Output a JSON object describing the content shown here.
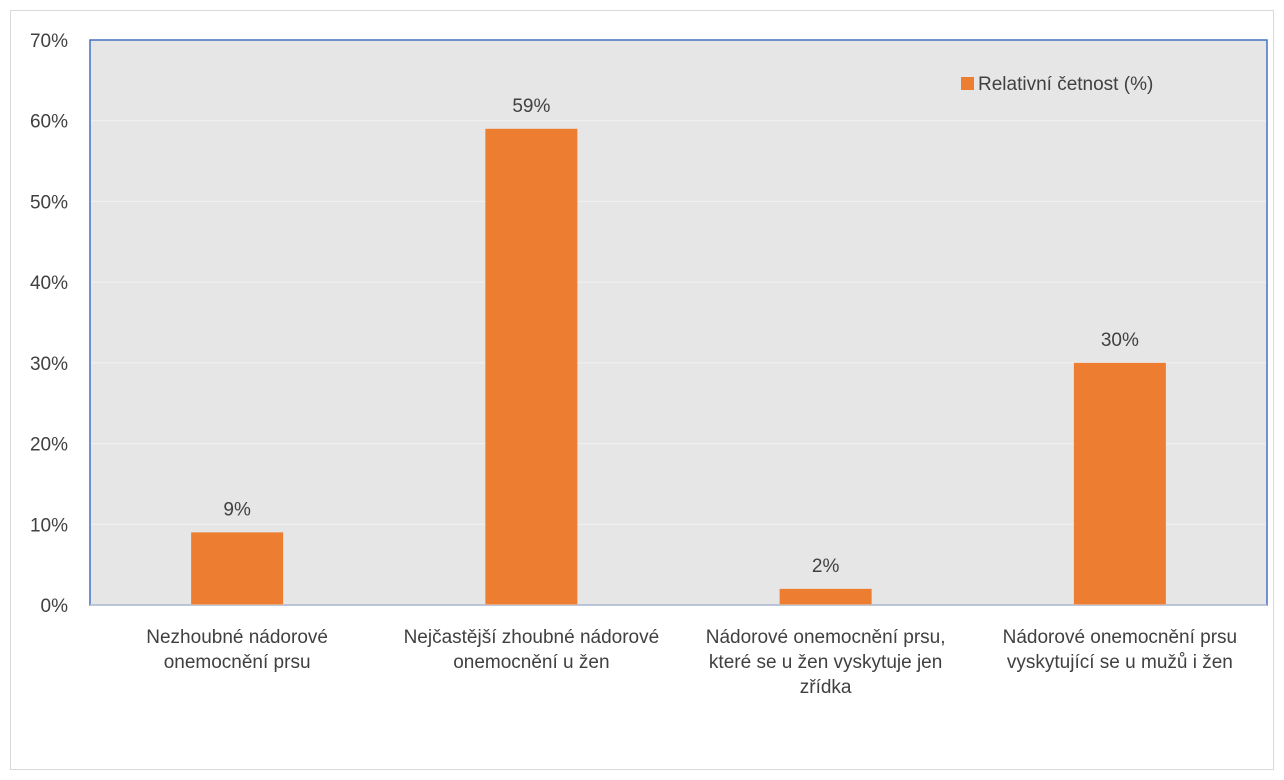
{
  "chart_data": {
    "type": "bar",
    "title": "",
    "xlabel": "",
    "ylabel": "",
    "ylim": [
      0,
      70
    ],
    "yticks": [
      0,
      10,
      20,
      30,
      40,
      50,
      60,
      70
    ],
    "ytick_labels": [
      "0%",
      "10%",
      "20%",
      "30%",
      "40%",
      "50%",
      "60%",
      "70%"
    ],
    "grid": true,
    "legend_position": "top-right",
    "categories": [
      [
        "Nezhoubné nádorové",
        "onemocnění prsu"
      ],
      [
        "Nejčastější zhoubné nádorové",
        "onemocnění u žen"
      ],
      [
        "Nádorové onemocnění prsu,",
        "které se u žen vyskytuje jen",
        "zřídka"
      ],
      [
        "Nádorové onemocnění prsu",
        "vyskytující se u mužů i žen"
      ]
    ],
    "series": [
      {
        "name": "Relativní četnost (%)",
        "values": [
          9,
          59,
          2,
          30
        ],
        "labels": [
          "9%",
          "59%",
          "2%",
          "30%"
        ],
        "color": "#ed7d31"
      }
    ],
    "plot_background": "#e7e6e6",
    "plot_border_color": "#4472c4",
    "gridline_color": "#f2f2f2"
  }
}
